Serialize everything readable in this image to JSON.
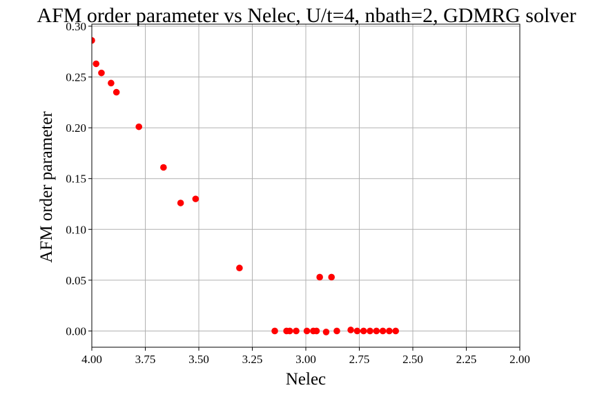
{
  "chart_data": {
    "type": "scatter",
    "title": "AFM order parameter vs Nelec, U/t=4, nbath=2, GDMRG solver",
    "xlabel": "Nelec",
    "ylabel": "AFM order parameter",
    "xlim": [
      4.0,
      2.0
    ],
    "ylim": [
      -0.016,
      0.302
    ],
    "x_inverted": true,
    "grid": true,
    "xticks": [
      4.0,
      3.75,
      3.5,
      3.25,
      3.0,
      2.75,
      2.5,
      2.25,
      2.0
    ],
    "xtick_labels": [
      "4.00",
      "3.75",
      "3.50",
      "3.25",
      "3.00",
      "2.75",
      "2.50",
      "2.25",
      "2.00"
    ],
    "yticks": [
      0.0,
      0.05,
      0.1,
      0.15,
      0.2,
      0.25,
      0.3
    ],
    "ytick_labels": [
      "0.00",
      "0.05",
      "0.10",
      "0.15",
      "0.20",
      "0.25",
      "0.30"
    ],
    "series": [
      {
        "color": "#ff0000",
        "marker": "circle",
        "points": [
          {
            "x": 4.0,
            "y": 0.286
          },
          {
            "x": 3.98,
            "y": 0.263
          },
          {
            "x": 3.955,
            "y": 0.254
          },
          {
            "x": 3.91,
            "y": 0.244
          },
          {
            "x": 3.885,
            "y": 0.235
          },
          {
            "x": 3.78,
            "y": 0.201
          },
          {
            "x": 3.665,
            "y": 0.161
          },
          {
            "x": 3.585,
            "y": 0.126
          },
          {
            "x": 3.515,
            "y": 0.13
          },
          {
            "x": 3.31,
            "y": 0.062
          },
          {
            "x": 3.145,
            "y": 0.0
          },
          {
            "x": 3.09,
            "y": 0.0
          },
          {
            "x": 3.075,
            "y": 0.0
          },
          {
            "x": 3.045,
            "y": 0.0
          },
          {
            "x": 2.995,
            "y": 0.0
          },
          {
            "x": 2.965,
            "y": 0.0
          },
          {
            "x": 2.95,
            "y": 0.0
          },
          {
            "x": 2.935,
            "y": 0.053
          },
          {
            "x": 2.905,
            "y": -0.001
          },
          {
            "x": 2.88,
            "y": 0.053
          },
          {
            "x": 2.855,
            "y": 0.0
          },
          {
            "x": 2.79,
            "y": 0.001
          },
          {
            "x": 2.76,
            "y": 0.0
          },
          {
            "x": 2.73,
            "y": 0.0
          },
          {
            "x": 2.7,
            "y": 0.0
          },
          {
            "x": 2.67,
            "y": 0.0
          },
          {
            "x": 2.64,
            "y": 0.0
          },
          {
            "x": 2.61,
            "y": 0.0
          },
          {
            "x": 2.58,
            "y": 0.0
          }
        ]
      }
    ]
  }
}
